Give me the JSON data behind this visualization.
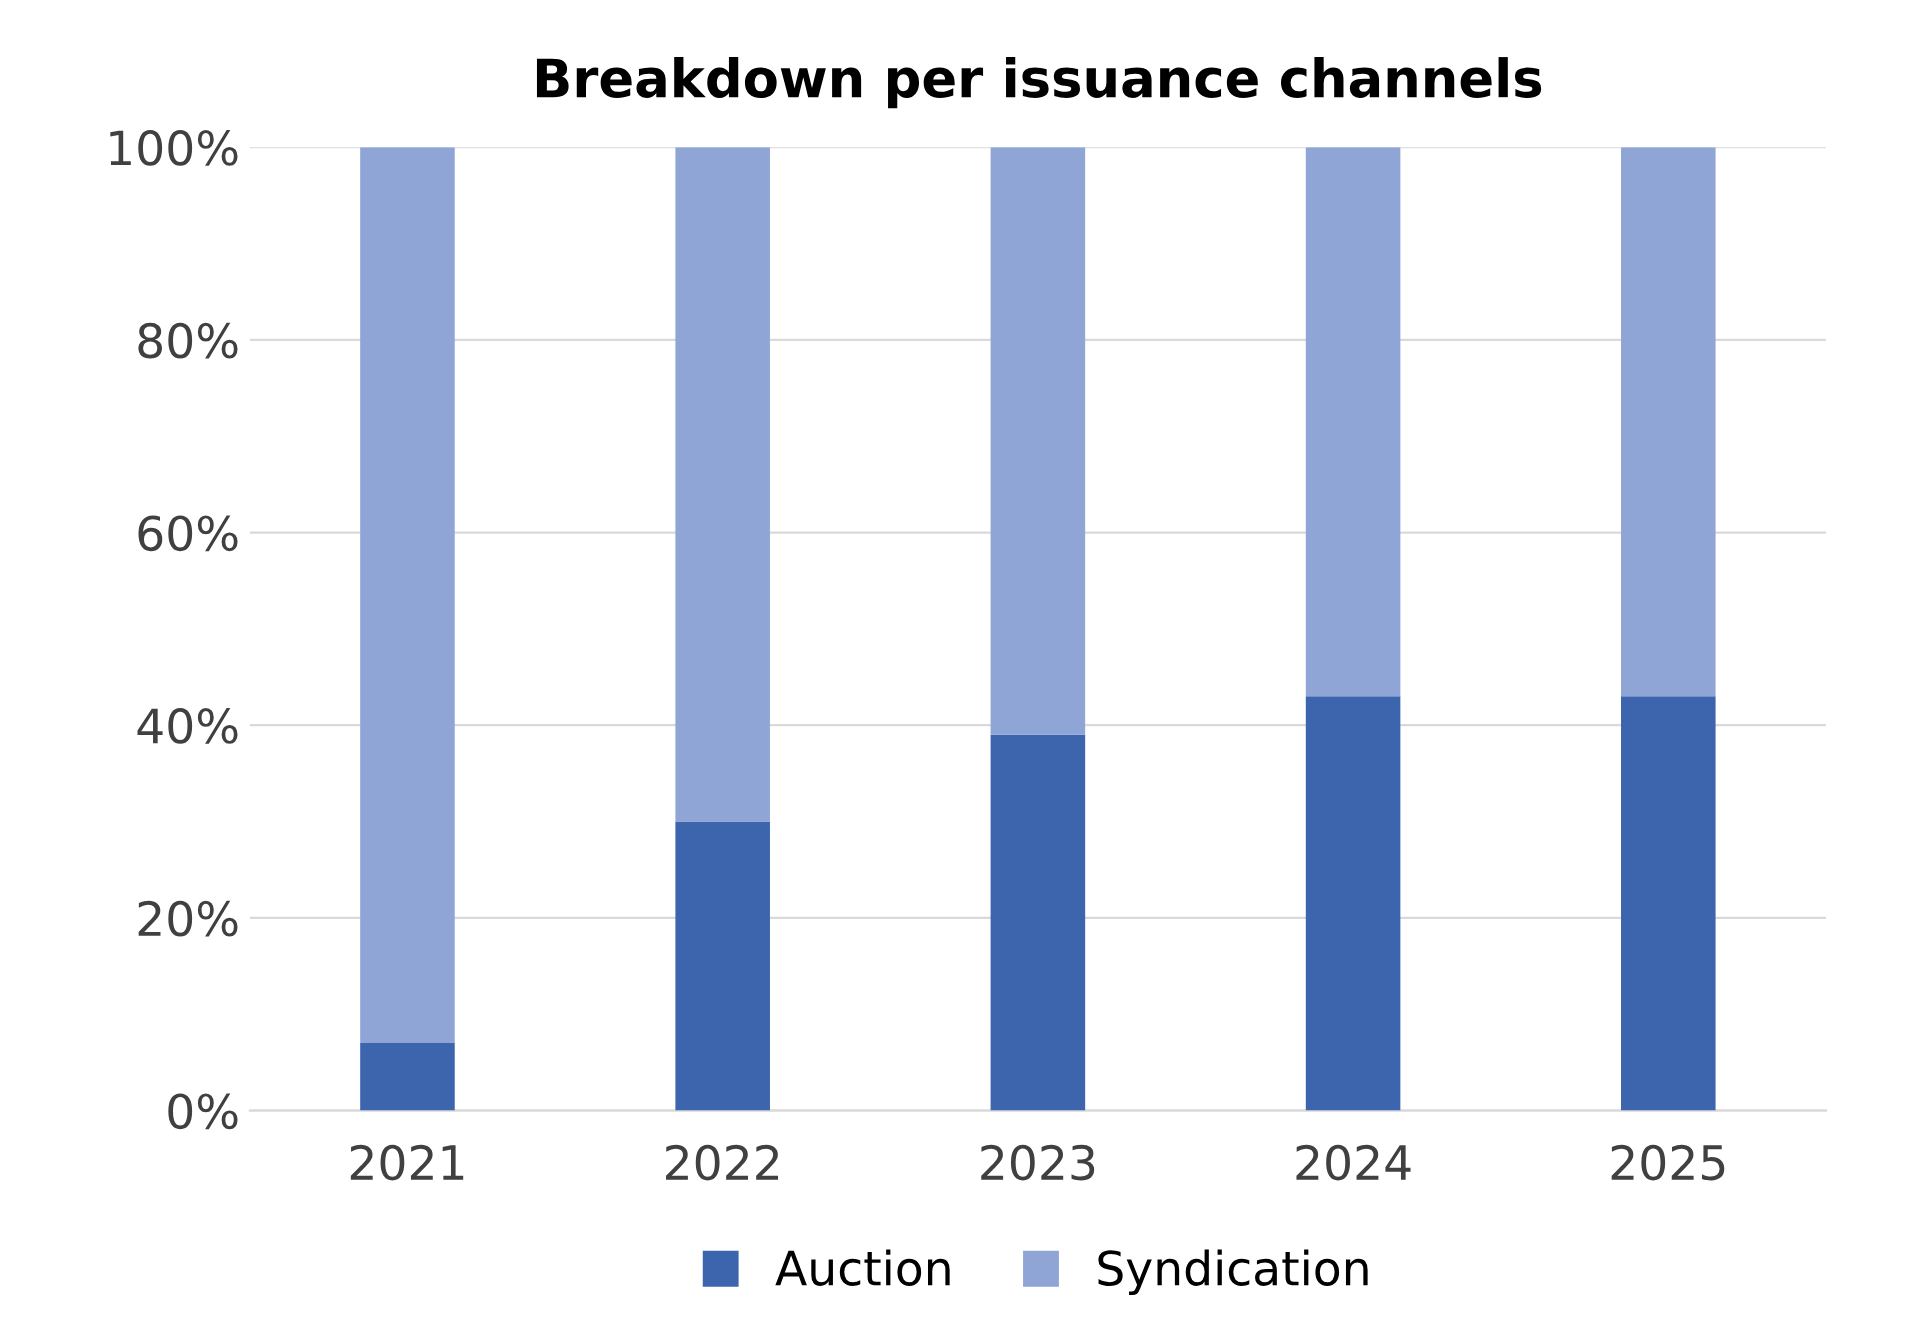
{
  "chart_data": {
    "type": "bar",
    "title": "Breakdown per issuance channels",
    "stacked": true,
    "categories": [
      "2021",
      "2022",
      "2023",
      "2024",
      "2025"
    ],
    "series": [
      {
        "name": "Auction",
        "color": "#3c65ad",
        "values": [
          7,
          30,
          39,
          43,
          43
        ]
      },
      {
        "name": "Syndication",
        "color": "#8fa5d6",
        "values": [
          93,
          70,
          61,
          57,
          57
        ]
      }
    ],
    "ylim": [
      0,
      100
    ],
    "yticks": [
      {
        "value": 0,
        "label": "0%"
      },
      {
        "value": 20,
        "label": "20%"
      },
      {
        "value": 40,
        "label": "40%"
      },
      {
        "value": 60,
        "label": "60%"
      },
      {
        "value": 80,
        "label": "80%"
      },
      {
        "value": 100,
        "label": "100%"
      }
    ],
    "grid": "y",
    "legend": "bottom"
  }
}
